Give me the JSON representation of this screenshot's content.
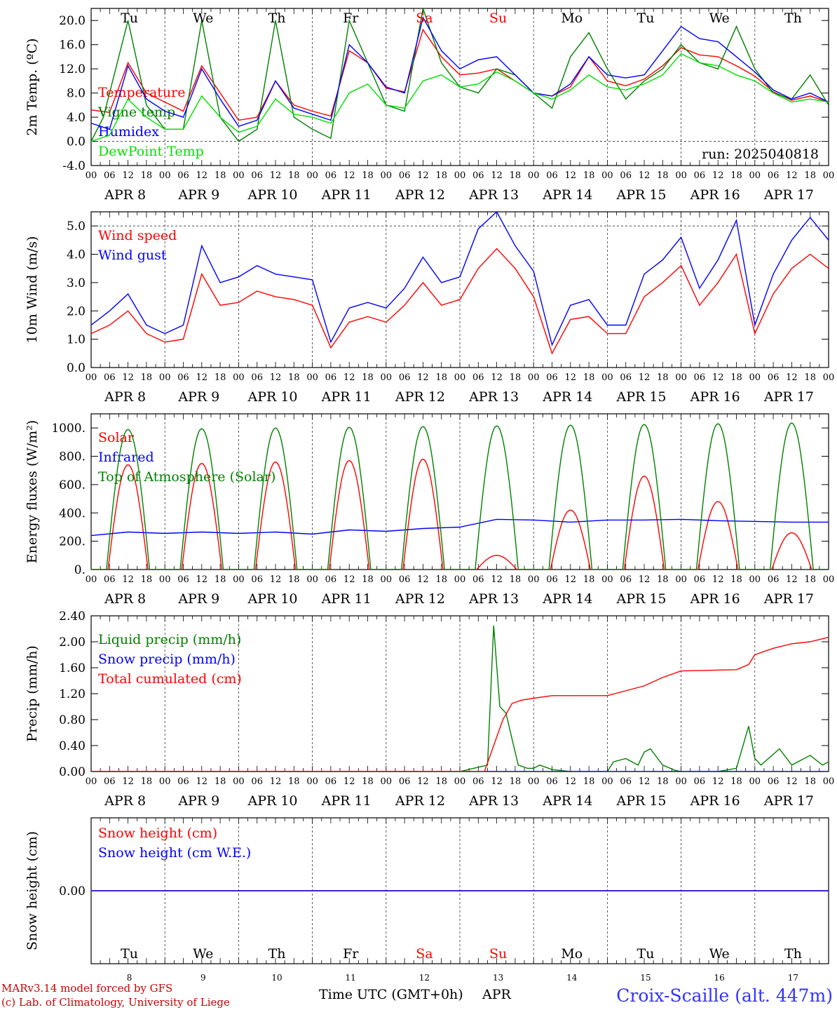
{
  "title": "Croix-Scaille (alt. 447m)",
  "footer": {
    "credit1": "MARv3.14 model forced by GFS",
    "credit2": "(c) Lab. of Climatology, University of Liege",
    "xlabel": "Time UTC (GMT+0h)",
    "month": "APR"
  },
  "run_label": "run: 2025040818",
  "colors": {
    "red": "#ff0000",
    "green": "#008000",
    "blue": "#0000ff",
    "lightgreen": "#00e000",
    "title": "#3333ff",
    "credits": "#cc0000"
  },
  "days": [
    {
      "label": "APR  8",
      "dow": "Tu",
      "num": "8",
      "weekend": false
    },
    {
      "label": "APR  9",
      "dow": "We",
      "num": "9",
      "weekend": false
    },
    {
      "label": "APR 10",
      "dow": "Th",
      "num": "10",
      "weekend": false
    },
    {
      "label": "APR 11",
      "dow": "Fr",
      "num": "11",
      "weekend": false
    },
    {
      "label": "APR 12",
      "dow": "Sa",
      "num": "12",
      "weekend": true
    },
    {
      "label": "APR 13",
      "dow": "Su",
      "num": "13",
      "weekend": true
    },
    {
      "label": "APR 14",
      "dow": "Mo",
      "num": "14",
      "weekend": false
    },
    {
      "label": "APR 15",
      "dow": "Tu",
      "num": "15",
      "weekend": false
    },
    {
      "label": "APR 16",
      "dow": "We",
      "num": "16",
      "weekend": false
    },
    {
      "label": "APR 17",
      "dow": "Th",
      "num": "17",
      "weekend": false
    }
  ],
  "hour_ticks": [
    "00",
    "06",
    "12",
    "18"
  ],
  "chart_data": [
    {
      "type": "line",
      "id": "temp",
      "ylabel": "2m Temp. (ºC)",
      "ylim": [
        -4,
        22
      ],
      "yticks": [
        -4,
        0,
        4,
        8,
        12,
        16,
        20
      ],
      "ytick_labels": [
        "-4.0",
        "0.0",
        "4.0",
        "8.0",
        "12.0",
        "16.0",
        "20.0"
      ],
      "ref_line": 0,
      "x_unit": "hours since APR 8 00 UTC",
      "legend_position": "top-left",
      "series": [
        {
          "name": "Temperature",
          "color": "red",
          "x": [
            0,
            6,
            12,
            18,
            24,
            30,
            36,
            42,
            48,
            54,
            60,
            66,
            72,
            78,
            84,
            90,
            96,
            102,
            108,
            114,
            120,
            126,
            132,
            138,
            144,
            150,
            156,
            162,
            168,
            174,
            180,
            186,
            192,
            198,
            204,
            210,
            216,
            222,
            228,
            234,
            240
          ],
          "y": [
            5.2,
            4.8,
            13,
            8,
            6.5,
            5,
            12.5,
            8,
            3.5,
            4,
            10,
            6,
            5,
            4.2,
            15,
            13,
            8.8,
            8.2,
            18.5,
            14,
            11,
            11.3,
            12,
            10,
            8,
            7.5,
            9,
            14,
            10,
            9.2,
            10.3,
            12.5,
            15.5,
            14.3,
            14,
            12.5,
            10.8,
            8.2,
            6.8,
            7.5,
            6.5
          ]
        },
        {
          "name": "Vigne temp",
          "color": "green",
          "x": [
            0,
            4,
            12,
            18,
            24,
            30,
            36,
            42,
            48,
            54,
            60,
            66,
            72,
            78,
            84,
            90,
            96,
            102,
            108,
            114,
            120,
            126,
            132,
            138,
            144,
            150,
            156,
            162,
            168,
            174,
            180,
            186,
            192,
            198,
            204,
            210,
            216,
            222,
            228,
            234,
            240
          ],
          "y": [
            0,
            4,
            20,
            6,
            2,
            2,
            20,
            4,
            0,
            2,
            20,
            4,
            2,
            0.5,
            20,
            13,
            6,
            5,
            22,
            13,
            9,
            8,
            12,
            11,
            8,
            5.5,
            14,
            18,
            12,
            7,
            10,
            12,
            16,
            13,
            12,
            19,
            12,
            8,
            7,
            11,
            6
          ]
        },
        {
          "name": "Humidex",
          "color": "blue",
          "x": [
            0,
            6,
            12,
            18,
            24,
            30,
            36,
            42,
            48,
            54,
            60,
            66,
            72,
            78,
            84,
            90,
            96,
            102,
            108,
            114,
            120,
            126,
            132,
            138,
            144,
            150,
            156,
            162,
            168,
            174,
            180,
            186,
            192,
            198,
            204,
            210,
            216,
            222,
            228,
            234,
            240
          ],
          "y": [
            3,
            2,
            12.5,
            7,
            5,
            4,
            12,
            7,
            2.5,
            3.5,
            10,
            5.5,
            4.5,
            3.5,
            16,
            13,
            9,
            8,
            20.5,
            15,
            12,
            13.5,
            14,
            11,
            8,
            7.5,
            9.5,
            14,
            11,
            10.5,
            11,
            15,
            19,
            17,
            16.5,
            14,
            11.5,
            8.5,
            7,
            8,
            6.5
          ]
        },
        {
          "name": "DewPoint Temp",
          "color": "lightgreen",
          "x": [
            0,
            6,
            12,
            18,
            24,
            30,
            36,
            42,
            48,
            54,
            60,
            66,
            72,
            78,
            84,
            90,
            96,
            102,
            108,
            114,
            120,
            126,
            132,
            138,
            144,
            150,
            156,
            162,
            168,
            174,
            180,
            186,
            192,
            198,
            204,
            210,
            216,
            222,
            228,
            234,
            240
          ],
          "y": [
            0,
            1,
            7,
            4,
            2,
            2,
            7.5,
            4,
            1.5,
            2.5,
            7,
            4.5,
            4,
            3,
            8,
            9.5,
            6,
            5.5,
            10,
            11,
            9,
            9.5,
            11.5,
            10,
            8,
            7,
            8.5,
            11,
            9,
            8.5,
            9.5,
            11,
            14.5,
            13,
            12.5,
            11,
            10,
            8,
            6.5,
            7,
            6.5
          ]
        }
      ]
    },
    {
      "type": "line",
      "id": "wind",
      "ylabel": "10m Wind (m/s)",
      "ylim": [
        0,
        5.5
      ],
      "yticks": [
        0,
        1,
        2,
        3,
        4,
        5
      ],
      "ytick_labels": [
        "0.0",
        "1.0",
        "2.0",
        "3.0",
        "4.0",
        "5.0"
      ],
      "ref_line": 5,
      "x_unit": "hours since APR 8 00 UTC",
      "legend_position": "top-left",
      "series": [
        {
          "name": "Wind speed",
          "color": "red",
          "x": [
            0,
            6,
            12,
            18,
            24,
            30,
            36,
            42,
            48,
            54,
            60,
            66,
            72,
            78,
            84,
            90,
            96,
            102,
            108,
            114,
            120,
            126,
            132,
            138,
            144,
            150,
            156,
            162,
            168,
            174,
            180,
            186,
            192,
            198,
            204,
            210,
            216,
            222,
            228,
            234,
            240
          ],
          "y": [
            1.2,
            1.5,
            2,
            1.2,
            0.9,
            1,
            3.3,
            2.2,
            2.3,
            2.7,
            2.5,
            2.4,
            2.2,
            0.7,
            1.6,
            1.8,
            1.6,
            2.2,
            3,
            2.2,
            2.4,
            3.5,
            4.2,
            3.5,
            2.5,
            0.5,
            1.7,
            1.8,
            1.2,
            1.2,
            2.5,
            3,
            3.6,
            2.2,
            3,
            4,
            1.2,
            2.6,
            3.5,
            4,
            3.5
          ]
        },
        {
          "name": "Wind gust",
          "color": "blue",
          "x": [
            0,
            6,
            12,
            18,
            24,
            30,
            36,
            42,
            48,
            54,
            60,
            66,
            72,
            78,
            84,
            90,
            96,
            102,
            108,
            114,
            120,
            126,
            132,
            138,
            144,
            150,
            156,
            162,
            168,
            174,
            180,
            186,
            192,
            198,
            204,
            210,
            216,
            222,
            228,
            234,
            240
          ],
          "y": [
            1.5,
            2,
            2.6,
            1.5,
            1.2,
            1.5,
            4.3,
            3,
            3.2,
            3.6,
            3.3,
            3.2,
            3.1,
            0.9,
            2.1,
            2.3,
            2.1,
            2.8,
            3.9,
            3,
            3.2,
            4.9,
            5.5,
            4.3,
            3.4,
            0.8,
            2.2,
            2.4,
            1.5,
            1.5,
            3.3,
            3.8,
            4.6,
            2.8,
            3.8,
            5.2,
            1.5,
            3.3,
            4.5,
            5.3,
            4.5
          ]
        }
      ]
    },
    {
      "type": "line",
      "id": "flux",
      "ylabel": "Energy fluxes (W/m²)",
      "ylim": [
        0,
        1100
      ],
      "yticks": [
        0,
        200,
        400,
        600,
        800,
        1000
      ],
      "ytick_labels": [
        "0.",
        "200.",
        "400.",
        "600.",
        "800.",
        "1000."
      ],
      "x_unit": "hours since APR 8 00 UTC",
      "legend_position": "top-left",
      "series": [
        {
          "name": "Solar",
          "color": "red",
          "peaks": [
            740,
            750,
            760,
            770,
            780,
            100,
            420,
            660,
            480,
            260
          ],
          "peak_hour": 12,
          "halfwidth": 6.5
        },
        {
          "name": "Infrared",
          "color": "blue",
          "x": [
            0,
            12,
            24,
            36,
            48,
            60,
            72,
            84,
            96,
            108,
            120,
            132,
            144,
            156,
            168,
            180,
            192,
            204,
            216,
            228,
            240
          ],
          "y": [
            240,
            265,
            255,
            265,
            255,
            265,
            250,
            280,
            270,
            290,
            300,
            355,
            350,
            335,
            350,
            350,
            355,
            345,
            340,
            335,
            335
          ]
        },
        {
          "name": "Top of Atmosphere (Solar)",
          "color": "green",
          "peaks": [
            990,
            995,
            1000,
            1005,
            1010,
            1015,
            1020,
            1025,
            1030,
            1035
          ],
          "peak_hour": 12,
          "halfwidth": 7
        }
      ]
    },
    {
      "type": "line",
      "id": "precip",
      "ylabel": "Precip (mm/h)",
      "ylim": [
        0,
        2.4
      ],
      "yticks": [
        0,
        0.4,
        0.8,
        1.2,
        1.6,
        2.0,
        2.4
      ],
      "ytick_labels": [
        "0.00",
        "0.40",
        "0.80",
        "1.20",
        "1.60",
        "2.00",
        "2.40"
      ],
      "x_unit": "hours since APR 8 00 UTC",
      "legend_position": "top-left",
      "series": [
        {
          "name": "Liquid precip (mm/h)",
          "color": "green",
          "x": [
            0,
            120,
            129,
            131,
            133,
            135,
            137,
            139,
            142,
            144,
            146,
            150,
            156,
            168,
            170,
            174,
            178,
            180,
            182,
            186,
            190,
            192,
            198,
            204,
            210,
            214,
            216,
            218,
            224,
            228,
            234,
            238,
            240
          ],
          "y": [
            0,
            0,
            0.1,
            2.25,
            1.0,
            0.9,
            0.5,
            0.1,
            0.05,
            0.05,
            0.1,
            0.03,
            0,
            0,
            0.15,
            0.2,
            0.1,
            0.3,
            0.35,
            0.1,
            0.02,
            0,
            0,
            0,
            0.05,
            0.7,
            0.2,
            0.1,
            0.35,
            0.1,
            0.25,
            0.1,
            0.15
          ]
        },
        {
          "name": "Snow precip (mm/h)",
          "color": "blue",
          "x": [
            0,
            240
          ],
          "y": [
            0,
            0
          ]
        },
        {
          "name": "Total cumulated (cm)",
          "color": "red",
          "x": [
            0,
            128,
            131,
            134,
            137,
            140,
            144,
            150,
            168,
            180,
            186,
            192,
            210,
            214,
            216,
            222,
            228,
            234,
            240
          ],
          "y": [
            0,
            0,
            0.4,
            0.8,
            1.05,
            1.1,
            1.13,
            1.17,
            1.17,
            1.32,
            1.45,
            1.55,
            1.57,
            1.65,
            1.8,
            1.9,
            1.97,
            2.0,
            2.07
          ]
        }
      ]
    },
    {
      "type": "line",
      "id": "snow",
      "ylabel": "Snow height (cm)",
      "ylim": [
        -1,
        1
      ],
      "yticks": [
        0
      ],
      "ytick_labels": [
        "0.00"
      ],
      "x_unit": "hours since APR 8 00 UTC",
      "legend_position": "top-left",
      "series": [
        {
          "name": "Snow height (cm)",
          "color": "red",
          "x": [
            0,
            240
          ],
          "y": [
            0,
            0
          ]
        },
        {
          "name": "Snow height (cm W.E.)",
          "color": "blue",
          "x": [
            0,
            240
          ],
          "y": [
            0,
            0
          ]
        }
      ]
    }
  ]
}
